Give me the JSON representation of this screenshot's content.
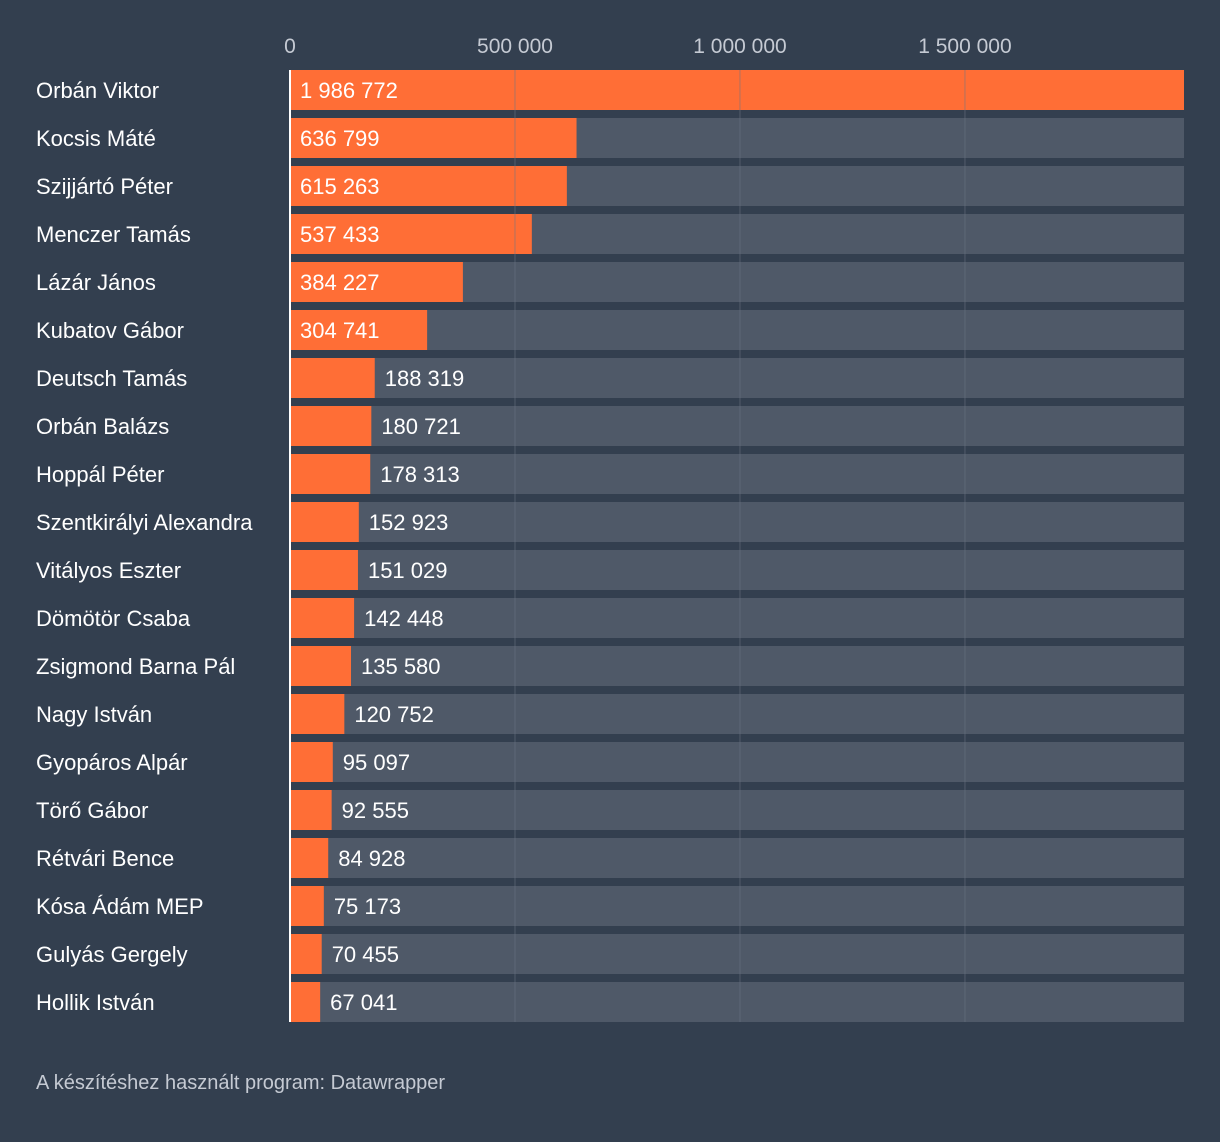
{
  "chart_data": {
    "type": "bar",
    "orientation": "horizontal",
    "categories": [
      "Orbán Viktor",
      "Kocsis Máté",
      "Szijjártó Péter",
      "Menczer Tamás",
      "Lázár János",
      "Kubatov Gábor",
      "Deutsch Tamás",
      "Orbán Balázs",
      "Hoppál Péter",
      "Szentkirályi Alexandra",
      "Vitályos Eszter",
      "Dömötör Csaba",
      "Zsigmond Barna Pál",
      "Nagy István",
      "Gyopáros Alpár",
      "Törő Gábor",
      "Rétvári Bence",
      "Kósa Ádám MEP",
      "Gulyás Gergely",
      "Hollik István"
    ],
    "values": [
      1986772,
      636799,
      615263,
      537433,
      384227,
      304741,
      188319,
      180721,
      178313,
      152923,
      151029,
      142448,
      135580,
      120752,
      95097,
      92555,
      84928,
      75173,
      70455,
      67041
    ],
    "value_labels": [
      "1 986 772",
      "636 799",
      "615 263",
      "537 433",
      "384 227",
      "304 741",
      "188 319",
      "180 721",
      "178 313",
      "152 923",
      "151 029",
      "142 448",
      "135 580",
      "120 752",
      "95 097",
      "92 555",
      "84 928",
      "75 173",
      "70 455",
      "67 041"
    ],
    "xlim": [
      0,
      1986772
    ],
    "ticks": [
      0,
      500000,
      1000000,
      1500000
    ],
    "tick_labels": [
      "0",
      "500 000",
      "1 000 000",
      "1 500 000"
    ],
    "tick_position": "top",
    "grid": true,
    "title": "",
    "xlabel": "",
    "ylabel": ""
  },
  "footer": {
    "text": "A készítéshez használt program: Datawrapper"
  },
  "colors": {
    "background": "#333f4f",
    "bar": "#ff6e36",
    "bar_track": "#4f5968",
    "gridline": "#6b7584",
    "tick_text": "#c5cad3",
    "label_text": "#ffffff"
  }
}
